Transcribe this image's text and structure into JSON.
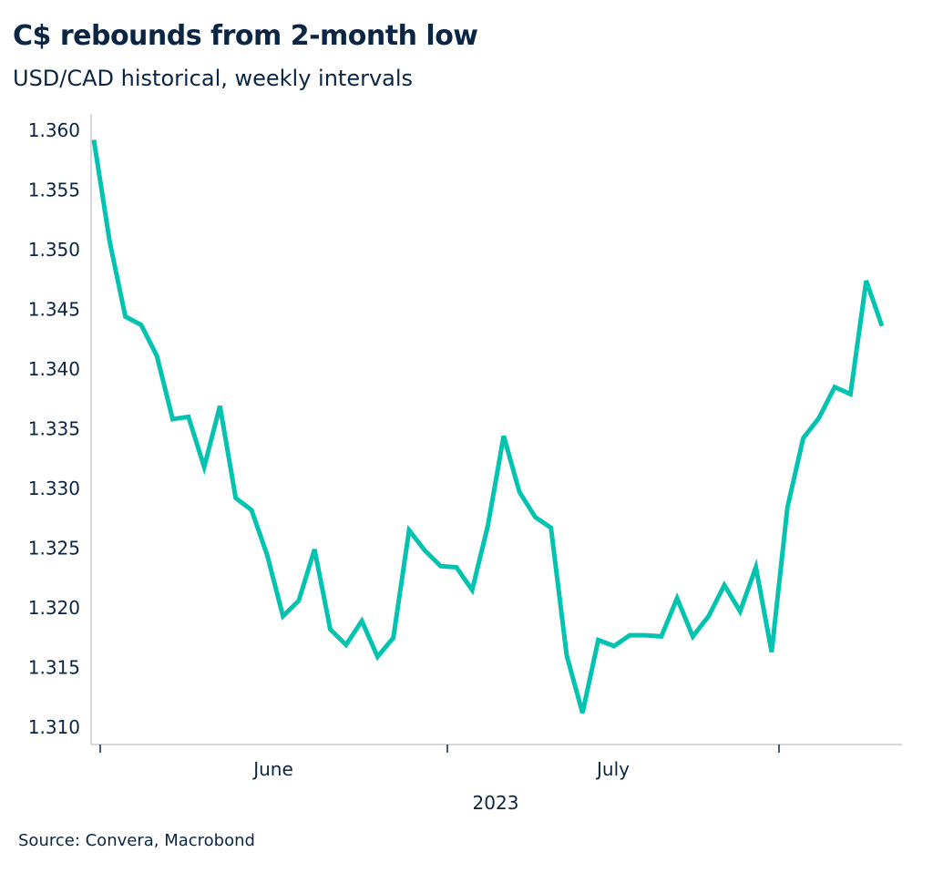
{
  "title": "C$ rebounds from 2-month low",
  "subtitle": "USD/CAD historical, weekly intervals",
  "source": "Source: Convera, Macrobond",
  "chart_data": {
    "type": "line",
    "title": "C$ rebounds from 2-month low",
    "subtitle": "USD/CAD historical, weekly intervals",
    "xlabel": "2023",
    "ylabel": "",
    "x_tick_labels": [
      "June",
      "July"
    ],
    "ylim": [
      1.31,
      1.36
    ],
    "yticks": [
      "1.310",
      "1.315",
      "1.320",
      "1.325",
      "1.330",
      "1.335",
      "1.340",
      "1.345",
      "1.350",
      "1.355",
      "1.360"
    ],
    "grid": false,
    "line_color": "#00c4b0",
    "text_color": "#0b2545",
    "series": [
      {
        "values": [
          1.3592,
          1.3507,
          1.3444,
          1.3437,
          1.3411,
          1.3358,
          1.336,
          1.3318,
          1.3369,
          1.3292,
          1.3282,
          1.3244,
          1.3193,
          1.3206,
          1.3249,
          1.3182,
          1.3169,
          1.3189,
          1.3159,
          1.3175,
          1.3265,
          1.3248,
          1.3235,
          1.3234,
          1.3215,
          1.3269,
          1.3344,
          1.3297,
          1.3276,
          1.3267,
          1.316,
          1.3112,
          1.3173,
          1.3168,
          1.3177,
          1.3177,
          1.3176,
          1.3208,
          1.3176,
          1.3193,
          1.3219,
          1.3197,
          1.3234,
          1.3163,
          1.3284,
          1.3342,
          1.3359,
          1.3385,
          1.3379,
          1.3474,
          1.3436
        ]
      }
    ]
  }
}
